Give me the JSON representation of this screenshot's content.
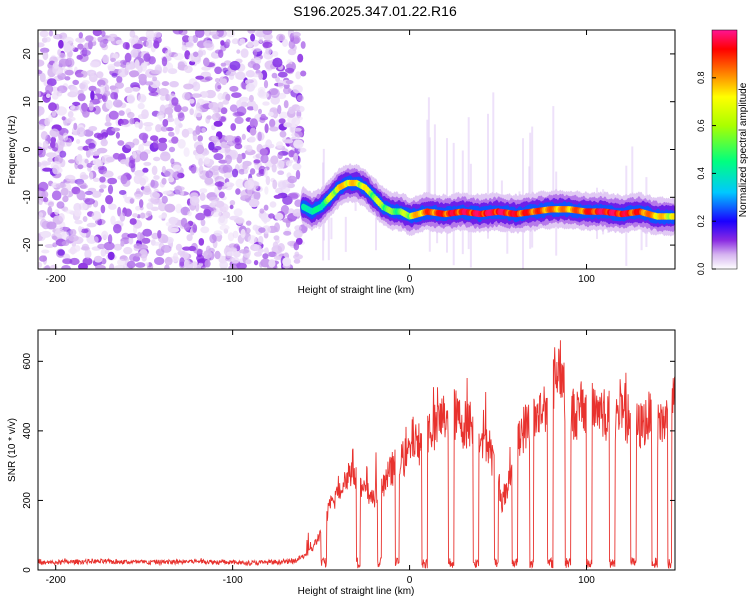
{
  "title": "S196.2025.347.01.22.R16",
  "chart_data": [
    {
      "type": "heatmap",
      "xlabel": "Height of straight line (km)",
      "ylabel": "Frequency (Hz)",
      "xlim": [
        -210,
        150
      ],
      "ylim": [
        -25,
        25
      ],
      "x_ticks": [
        -200,
        -100,
        0,
        100
      ],
      "y_ticks": [
        -20,
        -10,
        0,
        10,
        20
      ],
      "colorbar": {
        "label": "Normalized spectral amplitude",
        "range": [
          0,
          1
        ],
        "ticks": [
          "0.0",
          "0.2",
          "0.4",
          "0.6",
          "0.8"
        ],
        "tick_values": [
          0,
          0.2,
          0.4,
          0.6,
          0.8
        ],
        "colors": [
          "#ffffff",
          "#d6b4f0",
          "#8a2be2",
          "#1a00ff",
          "#00c8ff",
          "#00ff80",
          "#ffff00",
          "#ff8000",
          "#ff0000",
          "#ff1493"
        ]
      },
      "noise_region_x": [
        -210,
        -60
      ],
      "signal_ridge": {
        "x": [
          -60,
          -55,
          -50,
          -45,
          -40,
          -35,
          -30,
          -25,
          -20,
          -15,
          -10,
          -5,
          0,
          10,
          20,
          30,
          40,
          50,
          60,
          70,
          80,
          90,
          100,
          110,
          120,
          130,
          140,
          150
        ],
        "freq": [
          -12,
          -13,
          -12,
          -10,
          -8,
          -7,
          -7,
          -8,
          -10,
          -12,
          -13,
          -13,
          -14,
          -13,
          -13.5,
          -13,
          -13.5,
          -13,
          -13.5,
          -13,
          -12.5,
          -12.5,
          -13,
          -13,
          -13.5,
          -13,
          -14,
          -14
        ],
        "intensity": [
          0.25,
          0.3,
          0.3,
          0.45,
          0.55,
          0.6,
          0.55,
          0.5,
          0.45,
          0.45,
          0.4,
          0.4,
          0.5,
          0.75,
          0.85,
          0.9,
          0.95,
          0.95,
          0.85,
          0.8,
          0.7,
          0.65,
          0.8,
          0.95,
          0.9,
          0.8,
          0.6,
          0.5
        ]
      }
    },
    {
      "type": "line",
      "xlabel": "Height of straight line (km)",
      "ylabel": "SNR (10 * v/v)",
      "xlim": [
        -210,
        150
      ],
      "ylim": [
        0,
        690
      ],
      "x_ticks": [
        -200,
        -100,
        0,
        100
      ],
      "y_ticks": [
        0,
        200,
        400,
        600
      ],
      "series": [
        {
          "color": "#e8322e",
          "x": [
            -210,
            -180,
            -150,
            -120,
            -90,
            -65,
            -60,
            -55,
            -50,
            -45,
            -40,
            -35,
            -32,
            -30,
            -25,
            -20,
            -15,
            -12,
            -10,
            -5,
            0,
            2,
            5,
            10,
            15,
            20,
            25,
            30,
            35,
            40,
            45,
            48,
            50,
            52,
            55,
            60,
            65,
            70,
            75,
            80,
            85,
            90,
            95,
            100,
            105,
            110,
            115,
            120,
            125,
            130,
            135,
            140,
            145,
            150
          ],
          "y": [
            20,
            25,
            22,
            25,
            20,
            25,
            40,
            60,
            110,
            180,
            230,
            270,
            300,
            250,
            220,
            210,
            240,
            270,
            290,
            310,
            340,
            380,
            360,
            400,
            420,
            440,
            450,
            420,
            420,
            400,
            350,
            300,
            260,
            200,
            220,
            380,
            410,
            430,
            460,
            520,
            600,
            450,
            450,
            460,
            470,
            450,
            440,
            450,
            430,
            410,
            440,
            420,
            430,
            480
          ]
        }
      ],
      "dropouts": [
        [
          -50,
          -47
        ],
        [
          -30,
          -28
        ],
        [
          -18,
          -16
        ],
        [
          -8,
          -6
        ],
        [
          7,
          10
        ],
        [
          22,
          25
        ],
        [
          36,
          39
        ],
        [
          48,
          50
        ],
        [
          58,
          61
        ],
        [
          68,
          70
        ],
        [
          78,
          81
        ],
        [
          88,
          91
        ],
        [
          100,
          103
        ],
        [
          113,
          116
        ],
        [
          125,
          128
        ],
        [
          137,
          140
        ],
        [
          146,
          148
        ]
      ]
    }
  ]
}
